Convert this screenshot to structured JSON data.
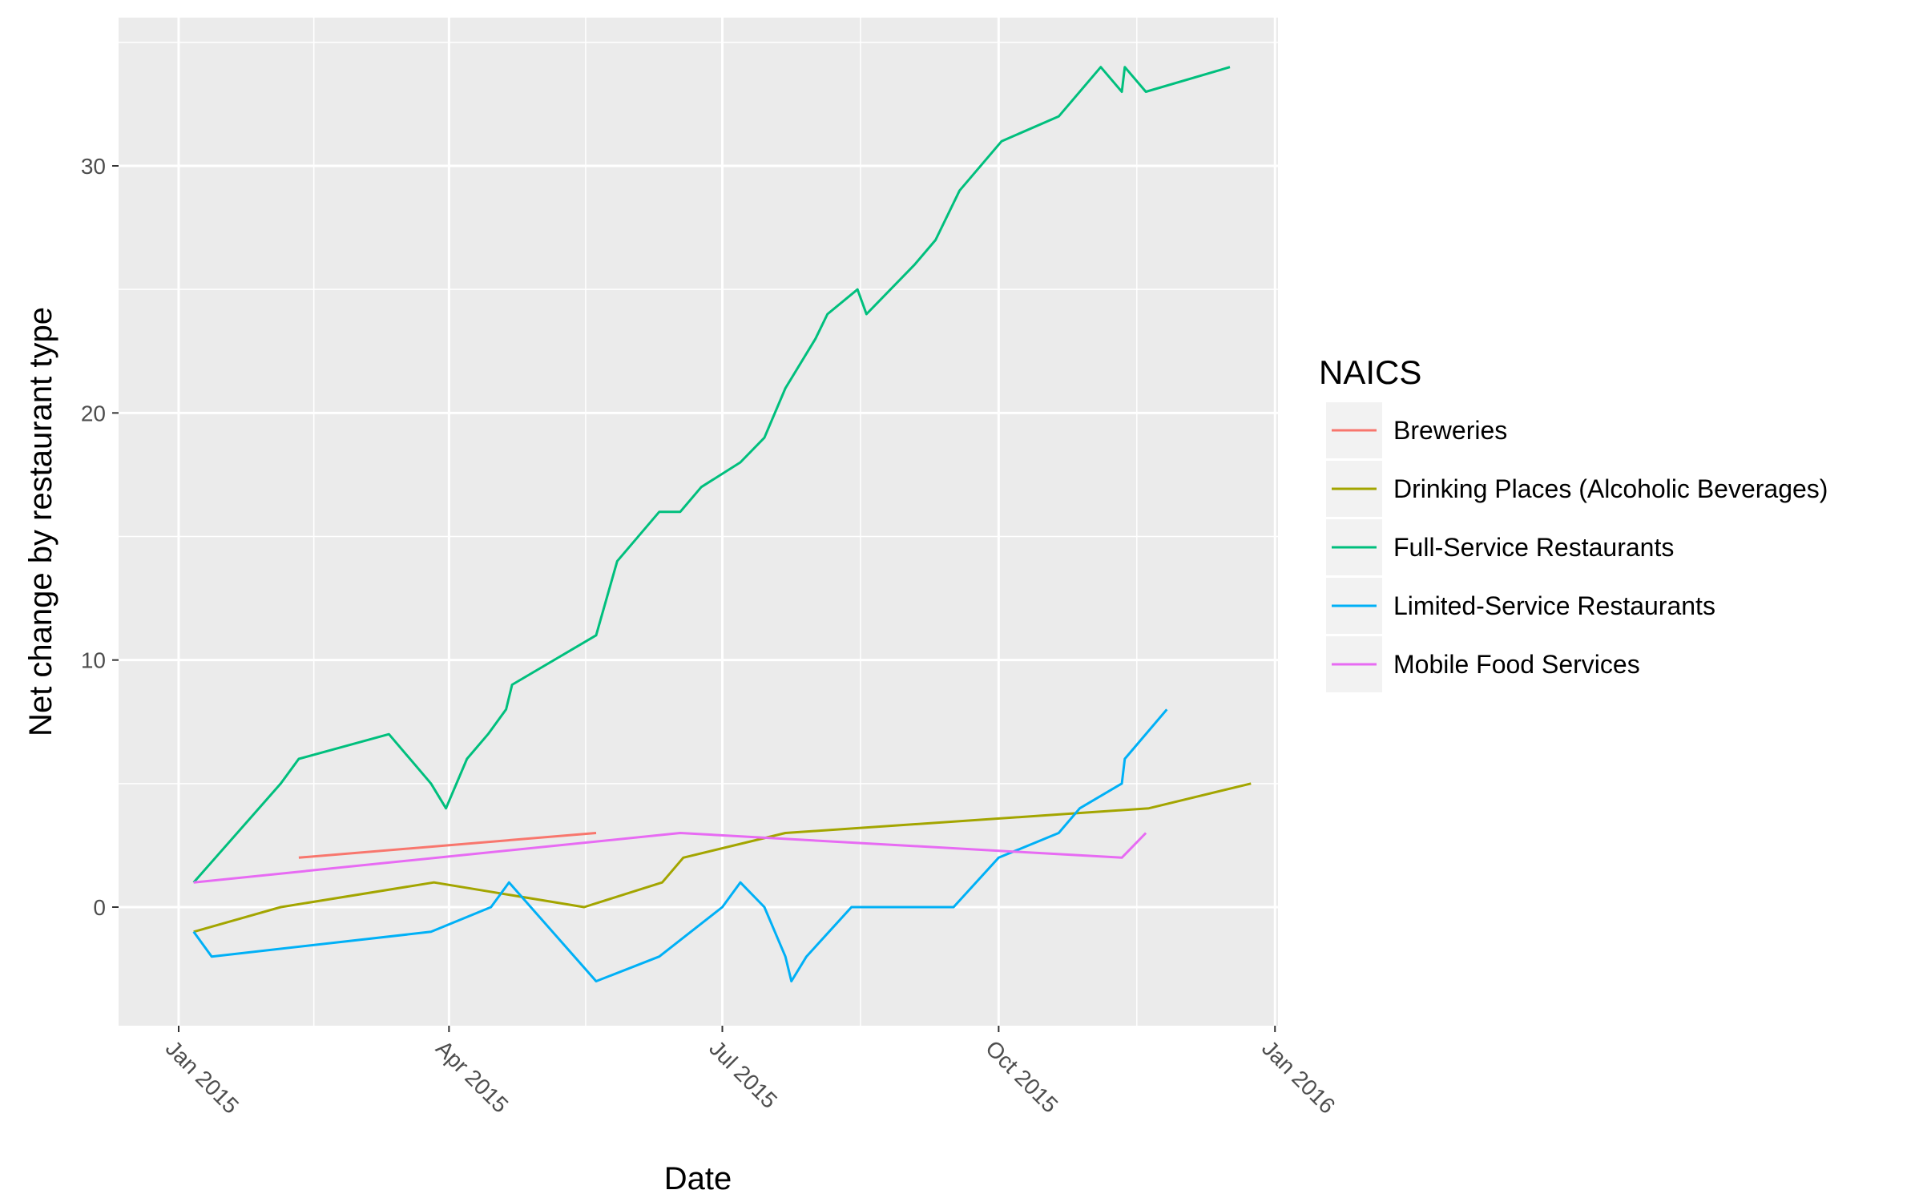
{
  "chart_data": {
    "type": "line",
    "xlabel": "Date",
    "ylabel": "Net change by restaurant type",
    "x_ticks": [
      {
        "date": "2015-01-01",
        "label": "Jan 2015"
      },
      {
        "date": "2015-04-01",
        "label": "Apr 2015"
      },
      {
        "date": "2015-07-01",
        "label": "Jul 2015"
      },
      {
        "date": "2015-10-01",
        "label": "Oct 2015"
      },
      {
        "date": "2016-01-01",
        "label": "Jan 2016"
      }
    ],
    "y_ticks": [
      0,
      10,
      20,
      30
    ],
    "xlim": [
      "2014-12-12",
      "2016-01-02"
    ],
    "ylim": [
      -4.8,
      36
    ],
    "grid": true,
    "legend": {
      "title": "NAICS",
      "position": "right"
    },
    "series": [
      {
        "name": "Breweries",
        "color": "#F8766D",
        "points": [
          [
            "2015-02-10",
            2
          ],
          [
            "2015-05-20",
            3
          ]
        ]
      },
      {
        "name": "Drinking Places (Alcoholic Beverages)",
        "color": "#A3A500",
        "points": [
          [
            "2015-01-06",
            -1
          ],
          [
            "2015-02-04",
            0
          ],
          [
            "2015-03-27",
            1
          ],
          [
            "2015-05-16",
            0
          ],
          [
            "2015-06-11",
            1
          ],
          [
            "2015-06-18",
            2
          ],
          [
            "2015-07-22",
            3
          ],
          [
            "2015-11-20",
            4
          ],
          [
            "2015-12-24",
            5
          ]
        ]
      },
      {
        "name": "Full-Service Restaurants",
        "color": "#00BF7D",
        "points": [
          [
            "2015-01-06",
            1
          ],
          [
            "2015-02-04",
            5
          ],
          [
            "2015-02-10",
            6
          ],
          [
            "2015-03-12",
            7
          ],
          [
            "2015-03-26",
            5
          ],
          [
            "2015-03-31",
            4
          ],
          [
            "2015-04-07",
            6
          ],
          [
            "2015-04-14",
            7
          ],
          [
            "2015-04-20",
            8
          ],
          [
            "2015-04-22",
            9
          ],
          [
            "2015-05-20",
            11
          ],
          [
            "2015-05-27",
            14
          ],
          [
            "2015-06-10",
            16
          ],
          [
            "2015-06-17",
            16
          ],
          [
            "2015-06-24",
            17
          ],
          [
            "2015-07-07",
            18
          ],
          [
            "2015-07-15",
            19
          ],
          [
            "2015-07-22",
            21
          ],
          [
            "2015-08-01",
            23
          ],
          [
            "2015-08-05",
            24
          ],
          [
            "2015-08-15",
            25
          ],
          [
            "2015-08-18",
            24
          ],
          [
            "2015-09-03",
            26
          ],
          [
            "2015-09-10",
            27
          ],
          [
            "2015-09-18",
            29
          ],
          [
            "2015-10-02",
            31
          ],
          [
            "2015-10-21",
            32
          ],
          [
            "2015-11-04",
            34
          ],
          [
            "2015-11-11",
            33
          ],
          [
            "2015-11-12",
            34
          ],
          [
            "2015-11-19",
            33
          ],
          [
            "2015-12-17",
            34
          ]
        ]
      },
      {
        "name": "Limited-Service Restaurants",
        "color": "#00B0F6",
        "points": [
          [
            "2015-01-06",
            -1
          ],
          [
            "2015-01-12",
            -2
          ],
          [
            "2015-03-26",
            -1
          ],
          [
            "2015-04-15",
            0
          ],
          [
            "2015-04-21",
            1
          ],
          [
            "2015-05-20",
            -3
          ],
          [
            "2015-06-10",
            -2
          ],
          [
            "2015-07-01",
            0
          ],
          [
            "2015-07-07",
            1
          ],
          [
            "2015-07-15",
            0
          ],
          [
            "2015-07-22",
            -2
          ],
          [
            "2015-07-24",
            -3
          ],
          [
            "2015-07-29",
            -2
          ],
          [
            "2015-08-13",
            0
          ],
          [
            "2015-09-16",
            0
          ],
          [
            "2015-10-01",
            2
          ],
          [
            "2015-10-21",
            3
          ],
          [
            "2015-10-28",
            4
          ],
          [
            "2015-11-11",
            5
          ],
          [
            "2015-11-12",
            6
          ],
          [
            "2015-11-26",
            8
          ]
        ]
      },
      {
        "name": "Mobile Food Services",
        "color": "#E76BF3",
        "points": [
          [
            "2015-01-06",
            1
          ],
          [
            "2015-06-17",
            3
          ],
          [
            "2015-11-11",
            2
          ],
          [
            "2015-11-19",
            3
          ]
        ]
      }
    ]
  }
}
